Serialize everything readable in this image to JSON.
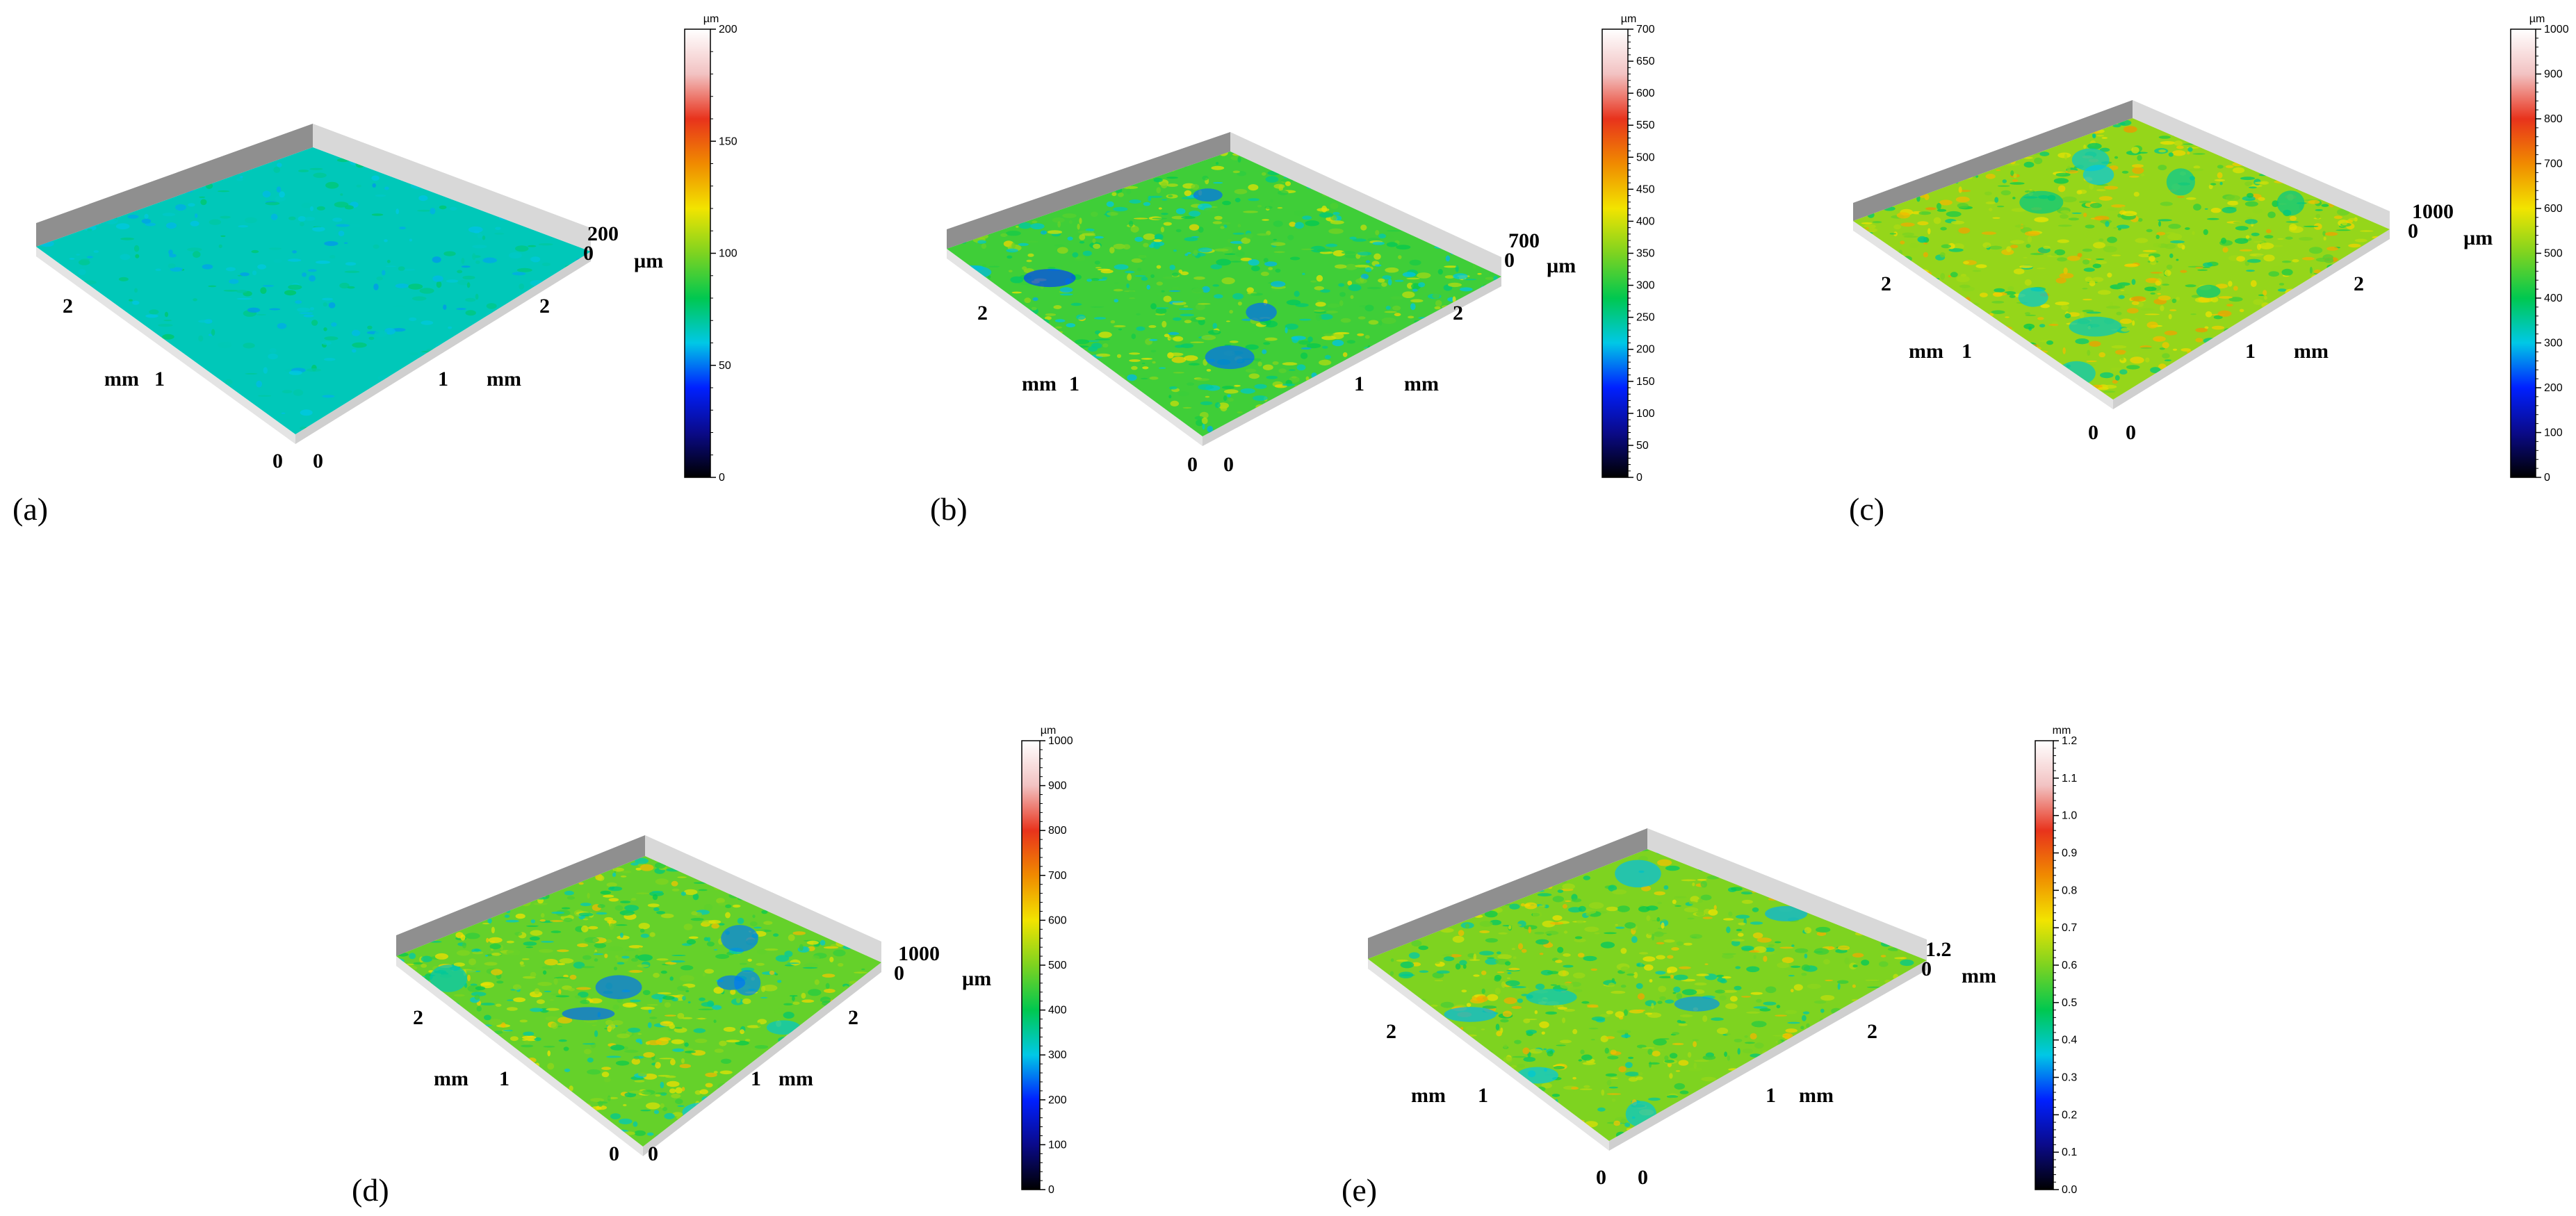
{
  "panels": [
    {
      "label": "(a)",
      "z_axis": {
        "unit": "µm",
        "max_label": "200",
        "zero_label": "0"
      },
      "x_axis": {
        "unit": "mm",
        "ticks": [
          "0",
          "1",
          "2"
        ]
      },
      "y_axis": {
        "unit": "mm",
        "ticks": [
          "0",
          "1",
          "2"
        ]
      },
      "colorbar": {
        "unit": "µm",
        "min": 0,
        "max": 200,
        "ticks": [
          "0",
          "50",
          "100",
          "150",
          "200"
        ]
      },
      "surface_color_level": 0.33
    },
    {
      "label": "(b)",
      "z_axis": {
        "unit": "µm",
        "max_label": "700",
        "zero_label": "0"
      },
      "x_axis": {
        "unit": "mm",
        "ticks": [
          "0",
          "1",
          "2"
        ]
      },
      "y_axis": {
        "unit": "mm",
        "ticks": [
          "0",
          "1",
          "2"
        ]
      },
      "colorbar": {
        "unit": "µm",
        "min": 0,
        "max": 700,
        "ticks": [
          "0",
          "50",
          "100",
          "150",
          "200",
          "250",
          "300",
          "350",
          "400",
          "450",
          "500",
          "550",
          "600",
          "650",
          "700"
        ]
      },
      "surface_color_level": 0.45
    },
    {
      "label": "(c)",
      "z_axis": {
        "unit": "µm",
        "max_label": "1000",
        "zero_label": "0"
      },
      "x_axis": {
        "unit": "mm",
        "ticks": [
          "0",
          "1",
          "2"
        ]
      },
      "y_axis": {
        "unit": "mm",
        "ticks": [
          "0",
          "1",
          "2"
        ]
      },
      "colorbar": {
        "unit": "µm",
        "min": 0,
        "max": 1000,
        "ticks": [
          "0",
          "100",
          "200",
          "300",
          "400",
          "500",
          "600",
          "700",
          "800",
          "900",
          "1000"
        ]
      },
      "surface_color_level": 0.52
    },
    {
      "label": "(d)",
      "z_axis": {
        "unit": "µm",
        "max_label": "1000",
        "zero_label": "0"
      },
      "x_axis": {
        "unit": "mm",
        "ticks": [
          "0",
          "1",
          "2"
        ]
      },
      "y_axis": {
        "unit": "mm",
        "ticks": [
          "0",
          "1",
          "2"
        ]
      },
      "colorbar": {
        "unit": "µm",
        "min": 0,
        "max": 1000,
        "ticks": [
          "0",
          "100",
          "200",
          "300",
          "400",
          "500",
          "600",
          "700",
          "800",
          "900",
          "1000"
        ]
      },
      "surface_color_level": 0.48
    },
    {
      "label": "(e)",
      "z_axis": {
        "unit": "mm",
        "max_label": "1.2",
        "zero_label": "0"
      },
      "x_axis": {
        "unit": "mm",
        "ticks": [
          "0",
          "1",
          "2"
        ]
      },
      "y_axis": {
        "unit": "mm",
        "ticks": [
          "0",
          "1",
          "2"
        ]
      },
      "colorbar": {
        "unit": "mm",
        "min": 0,
        "max": 1.2,
        "ticks": [
          "0.0",
          "0.1",
          "0.2",
          "0.3",
          "0.4",
          "0.5",
          "0.6",
          "0.7",
          "0.8",
          "0.9",
          "1.0",
          "1.1",
          "1.2"
        ]
      },
      "surface_color_level": 0.5
    }
  ],
  "colormap": [
    "#000000",
    "#0a0a8a",
    "#0020ff",
    "#00c8e6",
    "#00c850",
    "#7ed320",
    "#f2e400",
    "#f08a00",
    "#e8331c",
    "#f2c2c2",
    "#ffffff"
  ],
  "wall_color": "#9a9a9a"
}
